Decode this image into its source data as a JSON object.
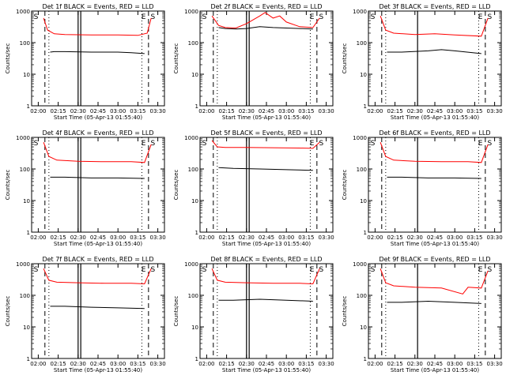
{
  "xlabel": "Start Time (05-Apr-13 01:55:40)",
  "ylabel": "Counts/sec",
  "xticks": [
    "02:00",
    "02:15",
    "02:30",
    "02:45",
    "03:00",
    "03:15",
    "03:30"
  ],
  "yticks": [
    "1",
    "10",
    "100",
    "1000"
  ],
  "colors": {
    "events": "#000000",
    "lld": "#ff0000"
  },
  "chart_data": [
    {
      "type": "line",
      "title": "Det 1f BLACK = Events, RED = LLD",
      "log_y": true,
      "ylim": [
        1,
        1000
      ],
      "x_unit": "minutes after 02:00",
      "series": [
        {
          "name": "Events",
          "color": "#000000",
          "x": [
            9,
            12,
            20,
            40,
            60,
            70,
            80
          ],
          "values": [
            50,
            52,
            52,
            50,
            50,
            48,
            45
          ]
        },
        {
          "name": "LLD",
          "color": "#ff0000",
          "x": [
            4,
            7,
            12,
            20,
            40,
            60,
            75,
            82,
            85
          ],
          "values": [
            600,
            250,
            190,
            180,
            175,
            175,
            170,
            200,
            600
          ]
        }
      ],
      "vlines": {
        "solid": [
          30,
          32
        ],
        "dashed": [
          5,
          83
        ],
        "dotted": [
          8,
          78
        ]
      },
      "annotations": [
        "S",
        "E",
        "S"
      ]
    },
    {
      "type": "line",
      "title": "Det 2f BLACK = Events, RED = LLD",
      "log_y": true,
      "ylim": [
        1,
        1000
      ],
      "x_unit": "minutes after 02:00",
      "series": [
        {
          "name": "Events",
          "color": "#000000",
          "x": [
            9,
            14,
            22,
            30,
            40,
            50,
            60,
            70,
            80
          ],
          "values": [
            300,
            280,
            270,
            280,
            320,
            300,
            290,
            280,
            270
          ]
        },
        {
          "name": "LLD",
          "color": "#ff0000",
          "x": [
            4,
            9,
            14,
            22,
            30,
            40,
            44,
            50,
            55,
            60,
            70,
            80,
            85
          ],
          "values": [
            700,
            350,
            300,
            290,
            400,
            700,
            900,
            600,
            700,
            450,
            320,
            300,
            600
          ]
        }
      ],
      "vlines": {
        "solid": [
          30,
          32
        ],
        "dashed": [
          5,
          83
        ],
        "dotted": [
          8,
          78
        ]
      },
      "annotations": [
        "S",
        "E",
        "S"
      ]
    },
    {
      "type": "line",
      "title": "Det 3f BLACK = Events, RED = LLD",
      "log_y": true,
      "ylim": [
        1,
        1000
      ],
      "x_unit": "minutes after 02:00",
      "series": [
        {
          "name": "Events",
          "color": "#000000",
          "x": [
            9,
            20,
            40,
            50,
            60,
            80
          ],
          "values": [
            50,
            50,
            55,
            60,
            55,
            45
          ]
        },
        {
          "name": "LLD",
          "color": "#ff0000",
          "x": [
            4,
            8,
            14,
            30,
            45,
            60,
            80,
            85
          ],
          "values": [
            700,
            250,
            200,
            180,
            190,
            175,
            160,
            600
          ]
        }
      ],
      "vlines": {
        "solid": [
          32
        ],
        "dashed": [
          5,
          83
        ],
        "dotted": [
          8,
          78
        ]
      },
      "annotations": [
        "S",
        "E",
        "S"
      ]
    },
    {
      "type": "line",
      "title": "Det 4f BLACK = Events, RED = LLD",
      "log_y": true,
      "ylim": [
        1,
        1000
      ],
      "x_unit": "minutes after 02:00",
      "series": [
        {
          "name": "Events",
          "color": "#000000",
          "x": [
            9,
            20,
            40,
            60,
            80
          ],
          "values": [
            55,
            55,
            52,
            52,
            50
          ]
        },
        {
          "name": "LLD",
          "color": "#ff0000",
          "x": [
            4,
            8,
            14,
            30,
            50,
            70,
            80,
            85
          ],
          "values": [
            700,
            250,
            190,
            175,
            170,
            170,
            160,
            600
          ]
        }
      ],
      "vlines": {
        "solid": [
          30,
          32
        ],
        "dashed": [
          5,
          83
        ],
        "dotted": [
          8,
          78
        ]
      },
      "annotations": [
        "S",
        "E",
        "S"
      ]
    },
    {
      "type": "line",
      "title": "Det 5f BLACK = Events, RED = LLD",
      "log_y": true,
      "ylim": [
        1,
        1000
      ],
      "x_unit": "minutes after 02:00",
      "series": [
        {
          "name": "Events",
          "color": "#000000",
          "x": [
            9,
            20,
            40,
            60,
            80
          ],
          "values": [
            110,
            105,
            100,
            95,
            90
          ]
        },
        {
          "name": "LLD",
          "color": "#ff0000",
          "x": [
            4,
            8,
            14,
            30,
            50,
            70,
            80,
            85
          ],
          "values": [
            800,
            500,
            480,
            480,
            470,
            460,
            450,
            700
          ]
        }
      ],
      "vlines": {
        "solid": [
          30,
          32
        ],
        "dashed": [
          5,
          83
        ],
        "dotted": [
          8,
          78
        ]
      },
      "annotations": [
        "S",
        "E",
        "S"
      ]
    },
    {
      "type": "line",
      "title": "Det 6f BLACK = Events, RED = LLD",
      "log_y": true,
      "ylim": [
        1,
        1000
      ],
      "x_unit": "minutes after 02:00",
      "series": [
        {
          "name": "Events",
          "color": "#000000",
          "x": [
            9,
            20,
            40,
            60,
            80
          ],
          "values": [
            55,
            55,
            52,
            52,
            50
          ]
        },
        {
          "name": "LLD",
          "color": "#ff0000",
          "x": [
            4,
            8,
            14,
            30,
            50,
            70,
            80,
            85
          ],
          "values": [
            700,
            250,
            190,
            175,
            170,
            170,
            160,
            600
          ]
        }
      ],
      "vlines": {
        "solid": [
          32
        ],
        "dashed": [
          5,
          83
        ],
        "dotted": [
          8,
          78
        ]
      },
      "annotations": [
        "S",
        "E",
        "S"
      ]
    },
    {
      "type": "line",
      "title": "Det 7f BLACK = Events, RED = LLD",
      "log_y": true,
      "ylim": [
        1,
        1000
      ],
      "x_unit": "minutes after 02:00",
      "series": [
        {
          "name": "Events",
          "color": "#000000",
          "x": [
            9,
            20,
            40,
            60,
            80
          ],
          "values": [
            45,
            45,
            42,
            40,
            38
          ]
        },
        {
          "name": "LLD",
          "color": "#ff0000",
          "x": [
            4,
            8,
            14,
            30,
            50,
            70,
            80,
            85
          ],
          "values": [
            700,
            300,
            260,
            250,
            240,
            240,
            230,
            700
          ]
        }
      ],
      "vlines": {
        "solid": [
          30,
          32
        ],
        "dashed": [
          5,
          83
        ],
        "dotted": [
          8,
          78
        ]
      },
      "annotations": [
        "S",
        "E",
        "S"
      ]
    },
    {
      "type": "line",
      "title": "Det 8f BLACK = Events, RED = LLD",
      "log_y": true,
      "ylim": [
        1,
        1000
      ],
      "x_unit": "minutes after 02:00",
      "series": [
        {
          "name": "Events",
          "color": "#000000",
          "x": [
            9,
            20,
            40,
            60,
            80
          ],
          "values": [
            70,
            70,
            75,
            70,
            65
          ]
        },
        {
          "name": "LLD",
          "color": "#ff0000",
          "x": [
            4,
            8,
            14,
            30,
            50,
            70,
            80,
            85
          ],
          "values": [
            700,
            300,
            260,
            250,
            240,
            240,
            230,
            700
          ]
        }
      ],
      "vlines": {
        "solid": [
          30,
          32
        ],
        "dashed": [
          5,
          83
        ],
        "dotted": [
          8,
          78
        ]
      },
      "annotations": [
        "S",
        "E",
        "S"
      ]
    },
    {
      "type": "line",
      "title": "Det 9f BLACK = Events, RED = LLD",
      "log_y": true,
      "ylim": [
        1,
        1000
      ],
      "x_unit": "minutes after 02:00",
      "series": [
        {
          "name": "Events",
          "color": "#000000",
          "x": [
            9,
            20,
            40,
            60,
            80
          ],
          "values": [
            60,
            60,
            65,
            60,
            55
          ]
        },
        {
          "name": "LLD",
          "color": "#ff0000",
          "x": [
            4,
            8,
            14,
            30,
            50,
            66,
            70,
            80,
            85
          ],
          "values": [
            700,
            250,
            200,
            180,
            170,
            110,
            180,
            170,
            600
          ]
        }
      ],
      "vlines": {
        "solid": [
          32
        ],
        "dashed": [
          5,
          83
        ],
        "dotted": [
          8,
          78
        ]
      },
      "annotations": [
        "S",
        "E",
        "S"
      ]
    }
  ]
}
